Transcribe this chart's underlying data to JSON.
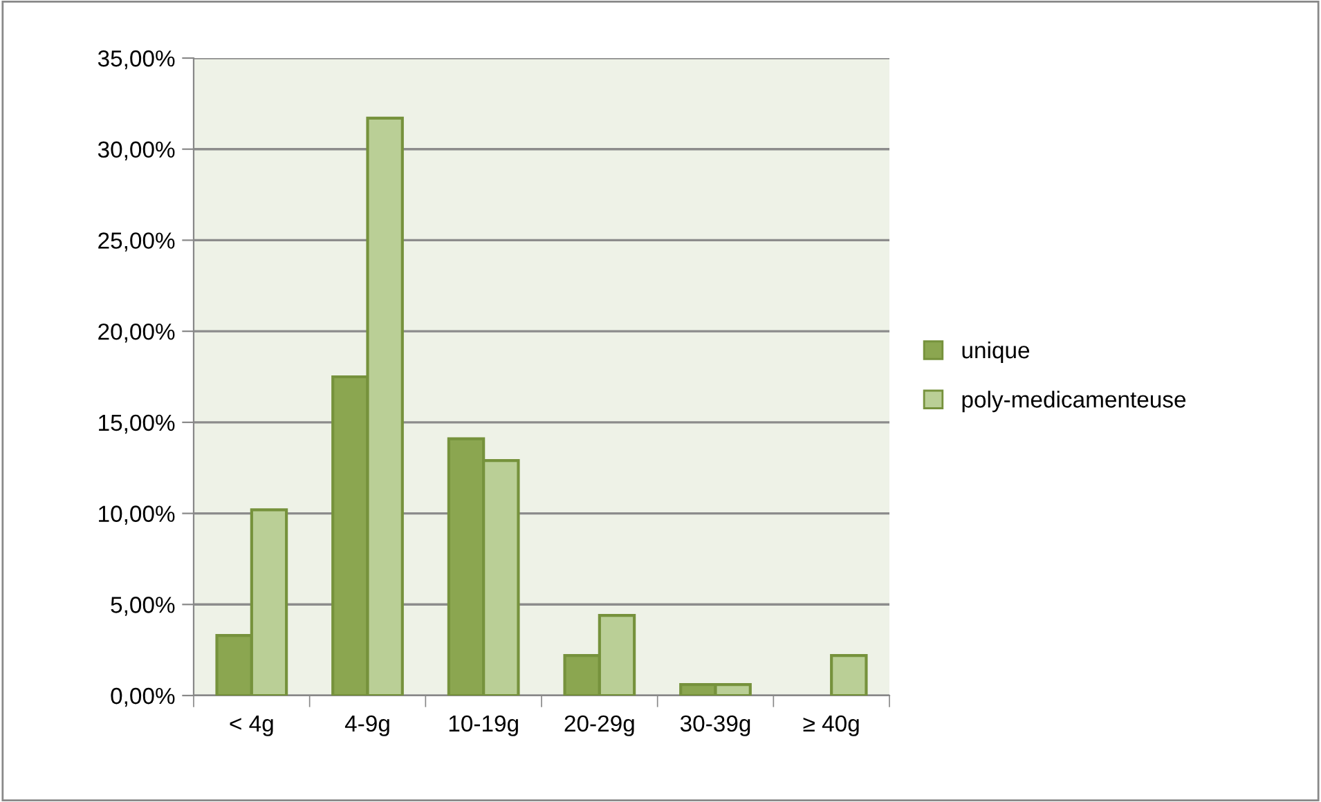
{
  "chart_data": {
    "type": "bar",
    "categories": [
      "< 4g",
      "4-9g",
      "10-19g",
      "20-29g",
      "30-39g",
      "≥ 40g"
    ],
    "series": [
      {
        "name": "unique",
        "color": "#8ba650",
        "values": [
          3.3,
          17.5,
          14.1,
          2.2,
          0.6,
          null
        ]
      },
      {
        "name": "poly-medicamenteuse",
        "color": "#bacf96",
        "values": [
          10.2,
          31.7,
          12.9,
          4.4,
          0.6,
          2.2
        ]
      }
    ],
    "ylim": [
      0,
      35
    ],
    "yticks": [
      {
        "value": 0,
        "label": "0,00%"
      },
      {
        "value": 5,
        "label": "5,00%"
      },
      {
        "value": 10,
        "label": "10,00%"
      },
      {
        "value": 15,
        "label": "15,00%"
      },
      {
        "value": 20,
        "label": "20,00%"
      },
      {
        "value": 25,
        "label": "25,00%"
      },
      {
        "value": 30,
        "label": "30,00%"
      },
      {
        "value": 35,
        "label": "35,00%"
      }
    ],
    "grid": "y",
    "legend": "right"
  }
}
